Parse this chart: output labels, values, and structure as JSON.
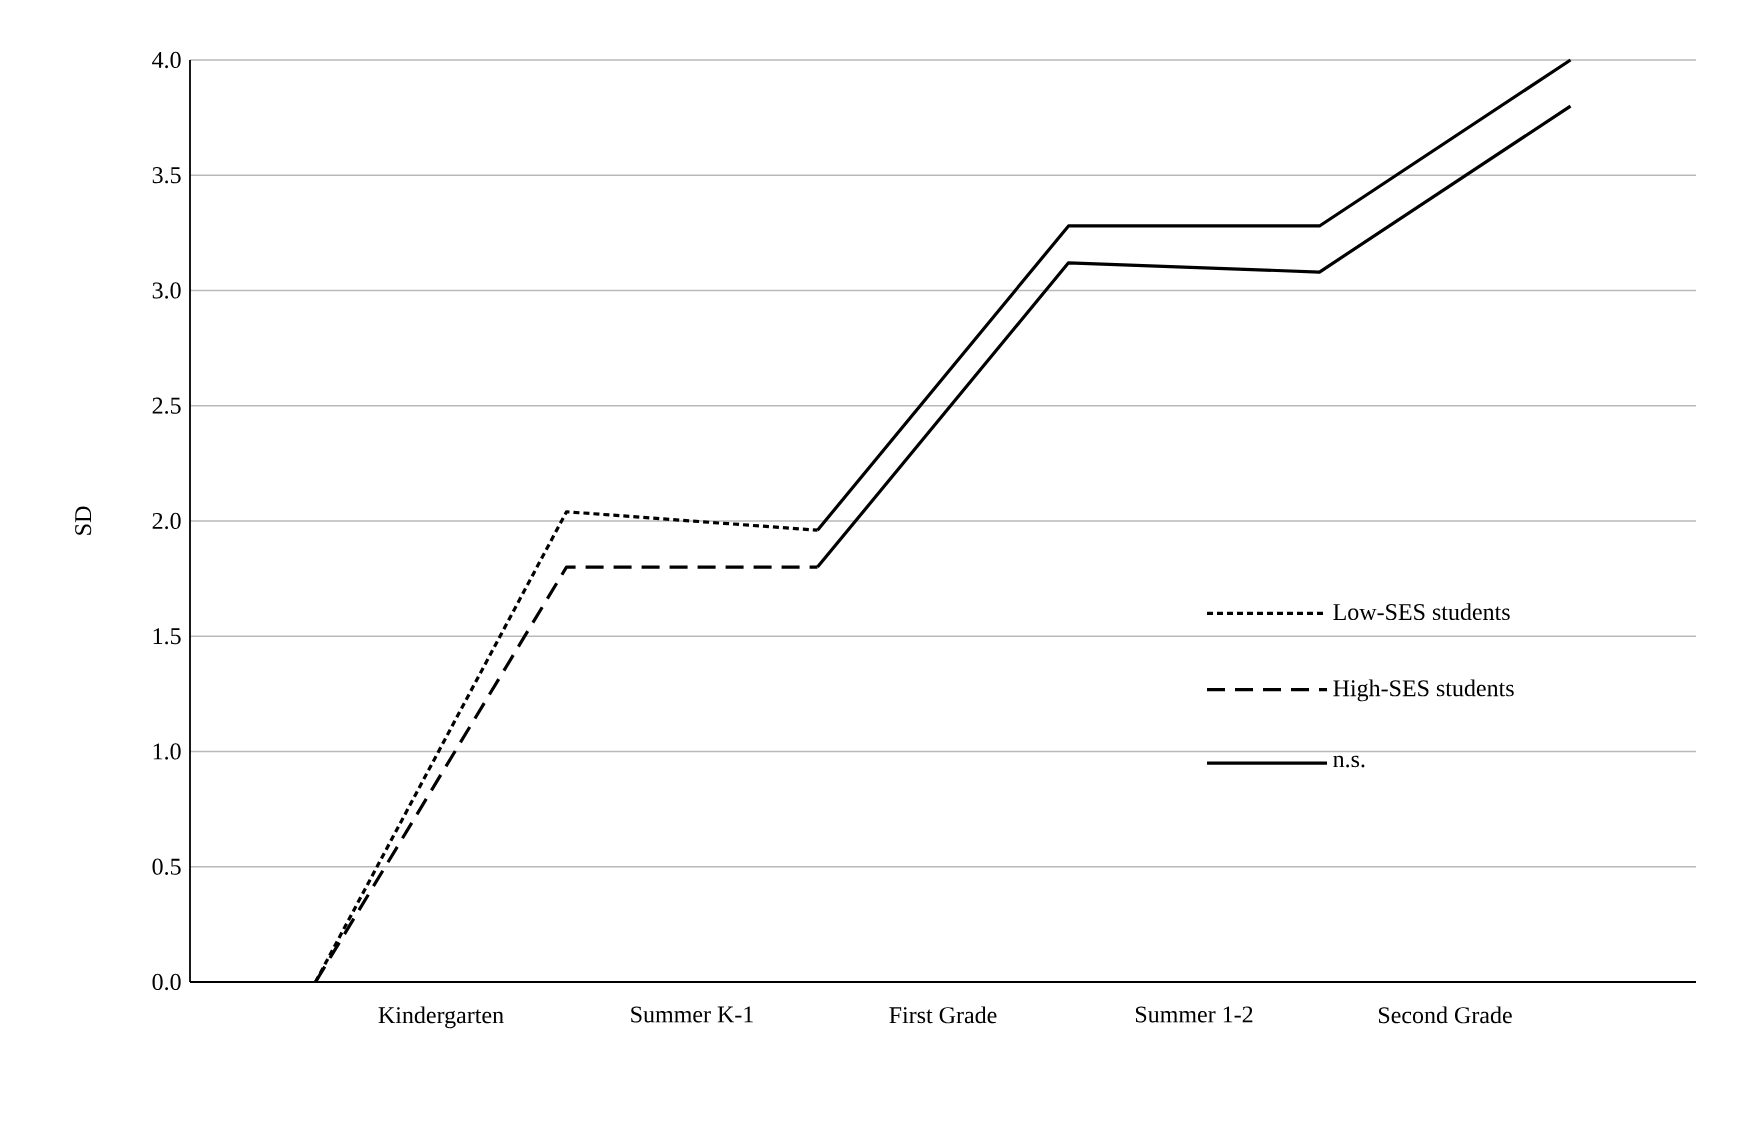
{
  "chart_data": {
    "type": "line",
    "ylabel": "SD",
    "categories": [
      null,
      "Kindergarten",
      null,
      "Summer K-1",
      null,
      "First Grade",
      null,
      "Summer 1-2",
      null,
      "Second Grade",
      null
    ],
    "ylim": [
      0,
      4
    ],
    "yticks": [
      {
        "value": 0,
        "label": "0.0"
      },
      {
        "value": 0.5,
        "label": "0.5"
      },
      {
        "value": 1,
        "label": "1.0"
      },
      {
        "value": 1.5,
        "label": "1.5"
      },
      {
        "value": 2,
        "label": "2.0"
      },
      {
        "value": 2.5,
        "label": "2.5"
      },
      {
        "value": 3,
        "label": "3.0"
      },
      {
        "value": 3.5,
        "label": "3.5"
      },
      {
        "value": 4,
        "label": "4.0"
      }
    ],
    "grid": "y",
    "legend": "right",
    "marker": "none",
    "series": [
      {
        "name": "Low-SES students",
        "color": "#000000",
        "line_style": "dotted",
        "values": [
          0,
          null,
          2.04,
          null,
          1.96,
          null,
          null,
          null,
          null,
          null,
          null
        ]
      },
      {
        "name": "High-SES students",
        "color": "#000000",
        "line_style": "dashed",
        "values": [
          0,
          null,
          1.8,
          null,
          1.8,
          null,
          null,
          null,
          null,
          null,
          null
        ]
      },
      {
        "name": "n.s.",
        "color": "#000000",
        "line_style": "solid",
        "values": [
          null,
          null,
          null,
          null,
          1.96,
          null,
          3.28,
          null,
          3.28,
          null,
          4.0
        ]
      },
      {
        "color": "#000000",
        "line_style": "solid",
        "values": [
          null,
          null,
          null,
          null,
          1.8,
          null,
          3.12,
          null,
          3.08,
          null,
          3.8
        ]
      }
    ]
  }
}
